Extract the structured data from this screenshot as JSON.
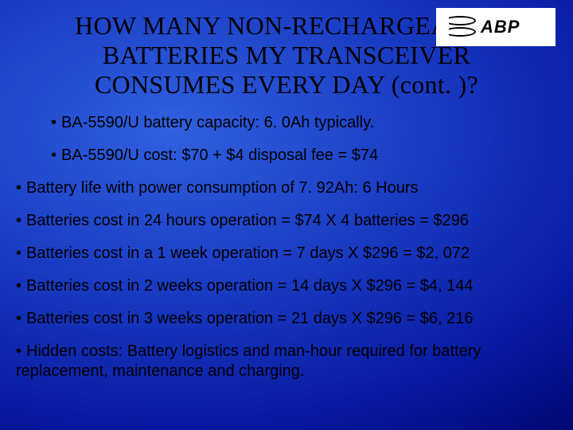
{
  "slide": {
    "title": "HOW MANY NON-RECHARGEABLE BATTERIES MY TRANSCEIVER CONSUMES EVERY DAY (cont. )?",
    "logo_text": "ABP",
    "background": {
      "gradient_inner": "#3060e0",
      "gradient_mid": "#1838c0",
      "gradient_outer": "#000060"
    },
    "title_font": "Times New Roman",
    "title_fontsize": 32,
    "body_font": "Arial",
    "body_fontsize": 20,
    "text_color": "#000000",
    "bullets": [
      {
        "indent": true,
        "text": "BA-5590/U battery capacity: 6. 0Ah typically."
      },
      {
        "indent": true,
        "text": "BA-5590/U cost: $70 + $4 disposal fee = $74"
      },
      {
        "indent": false,
        "text": "Battery life with power consumption of 7. 92Ah: 6 Hours"
      },
      {
        "indent": false,
        "text": "Batteries cost in 24 hours operation = $74 X 4 batteries = $296"
      },
      {
        "indent": false,
        "text": "Batteries cost in a 1 week operation = 7 days X $296 = $2, 072"
      },
      {
        "indent": false,
        "text": "Batteries cost in 2 weeks operation = 14 days X $296 = $4, 144"
      },
      {
        "indent": false,
        "text": "Batteries cost in 3 weeks operation = 21 days X $296 = $6, 216"
      },
      {
        "indent": false,
        "text": "Hidden costs: Battery logistics and man-hour required for battery replacement, maintenance and charging."
      }
    ]
  }
}
